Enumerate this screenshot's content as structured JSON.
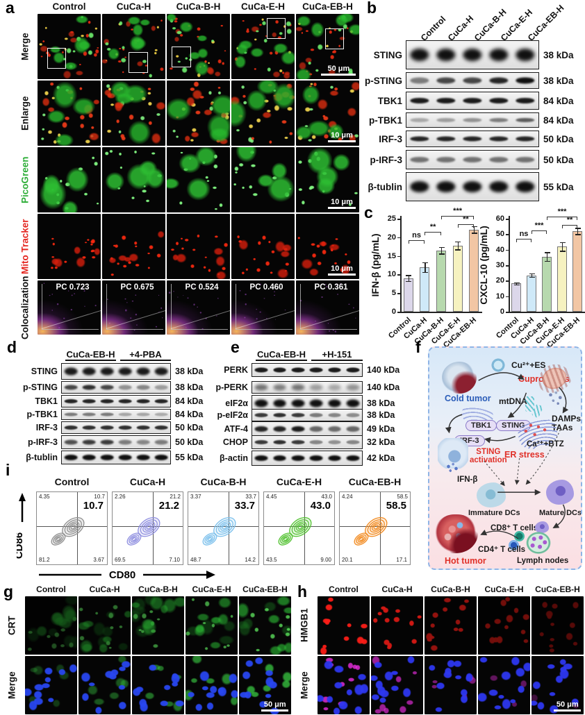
{
  "panels": {
    "a": {
      "label": "a",
      "columns": [
        "Control",
        "CuCa-H",
        "CuCa-B-H",
        "CuCa-E-H",
        "CuCa-EB-H"
      ],
      "rows": [
        {
          "text": "Merge",
          "color": "#111111"
        },
        {
          "text": "Enlarge",
          "color": "#111111"
        },
        {
          "text": "PicoGreen",
          "color": "#2fae39"
        },
        {
          "text": "Mito Tracker",
          "color": "#e42620"
        },
        {
          "text": "Colocalization",
          "color": "#111111"
        }
      ],
      "pc_values": [
        "PC 0.723",
        "PC 0.675",
        "PC 0.524",
        "PC 0.460",
        "PC 0.361"
      ],
      "scalebar_merge": "50 μm",
      "scalebar_small": "10 μm"
    },
    "b": {
      "label": "b",
      "columns": [
        "Control",
        "CuCa-H",
        "CuCa-B-H",
        "CuCa-E-H",
        "CuCa-EB-H"
      ],
      "rows": [
        {
          "protein": "STING",
          "kda": "38 kDa"
        },
        {
          "protein": "p-STING",
          "kda": "38 kDa"
        },
        {
          "protein": "TBK1",
          "kda": "84 kDa"
        },
        {
          "protein": "p-TBK1",
          "kda": "84 kDa"
        },
        {
          "protein": "IRF-3",
          "kda": "50 kDa"
        },
        {
          "protein": "p-IRF-3",
          "kda": "50 kDa"
        },
        {
          "protein": "β-tublin",
          "kda": "55 kDa"
        }
      ]
    },
    "c": {
      "label": "c"
    },
    "d": {
      "label": "d",
      "groups": [
        "CuCa-EB-H",
        "+4-PBA"
      ],
      "rows": [
        {
          "protein": "STING",
          "kda": "38 kDa"
        },
        {
          "protein": "p-STING",
          "kda": "38 kDa"
        },
        {
          "protein": "TBK1",
          "kda": "84 kDa"
        },
        {
          "protein": "p-TBK1",
          "kda": "84 kDa"
        },
        {
          "protein": "IRF-3",
          "kda": "50 kDa"
        },
        {
          "protein": "p-IRF-3",
          "kda": "50 kDa"
        },
        {
          "protein": "β-tublin",
          "kda": "55 kDa"
        }
      ]
    },
    "e": {
      "label": "e",
      "groups": [
        "CuCa-EB-H",
        "+H-151"
      ],
      "rows": [
        {
          "protein": "PERK",
          "kda": "140 kDa"
        },
        {
          "protein": "p-PERK",
          "kda": "140 kDa"
        },
        {
          "protein": "eIF2α",
          "kda": "38 kDa"
        },
        {
          "protein": "p-eIF2α",
          "kda": "38 kDa"
        },
        {
          "protein": "ATF-4",
          "kda": "49 kDa"
        },
        {
          "protein": "CHOP",
          "kda": "32 kDa"
        },
        {
          "protein": "β-actin",
          "kda": "42 kDa"
        }
      ]
    },
    "f": {
      "label": "f",
      "cold_tumor": "Cold tumor",
      "cu_es": "Cu²⁺+ES",
      "cuproptosis": "Cuproptosis",
      "mtdna": "mtDNA",
      "damps_line1": "DAMPs",
      "damps_line2": "TAAs",
      "tbk1": "TBK1",
      "sting": "STING",
      "irf3": "IRF-3",
      "sting_act_1": "STING",
      "sting_act_2": "activation",
      "er_stress": "ER stress",
      "ca_btz": "Ca²⁺+BTZ",
      "ifn_b": "IFN-β",
      "immature": "Immature DCs",
      "mature": "Mature DCs",
      "cd8": "CD8⁺ T cells",
      "cd4": "CD4⁺ T cells",
      "hot_tumor": "Hot tumor",
      "lymph": "Lymph nodes"
    },
    "i": {
      "label": "i",
      "x_axis": "CD80",
      "y_axis": "CD86",
      "plots": [
        {
          "title": "Control",
          "tl": "4.35",
          "tr": "10.7",
          "big": "10.7",
          "bl": "81.2",
          "br": "3.67",
          "color": "#8f8f8f"
        },
        {
          "title": "CuCa-H",
          "tl": "2.26",
          "tr": "21.2",
          "big": "21.2",
          "bl": "69.5",
          "br": "7.10",
          "color": "#8f8fe0"
        },
        {
          "title": "CuCa-B-H",
          "tl": "3.37",
          "tr": "33.7",
          "big": "33.7",
          "bl": "48.7",
          "br": "14.2",
          "color": "#7cc0ec"
        },
        {
          "title": "CuCa-E-H",
          "tl": "4.45",
          "tr": "43.0",
          "big": "43.0",
          "bl": "43.5",
          "br": "9.00",
          "color": "#53c232"
        },
        {
          "title": "CuCa-EB-H",
          "tl": "4.24",
          "tr": "58.5",
          "big": "58.5",
          "bl": "20.1",
          "br": "17.1",
          "color": "#f28a1f"
        }
      ]
    },
    "g": {
      "label": "g",
      "columns": [
        "Control",
        "CuCa-H",
        "CuCa-B-H",
        "CuCa-E-H",
        "CuCa-EB-H"
      ],
      "rows": [
        "CRT",
        "Merge"
      ],
      "scalebar": "50 μm"
    },
    "h": {
      "label": "h",
      "columns": [
        "Control",
        "CuCa-H",
        "CuCa-B-H",
        "CuCa-E-H",
        "CuCa-EB-H"
      ],
      "rows": [
        "HMGB1",
        "Merge"
      ],
      "scalebar": "50 μm"
    }
  },
  "chart_data": [
    {
      "type": "bar",
      "title": "",
      "ylabel": "IFN-β (pg/mL)",
      "categories": [
        "Control",
        "CuCa-H",
        "CuCa-B-H",
        "CuCa-E-H",
        "CuCa-EB-H"
      ],
      "values": [
        9.0,
        11.9,
        16.5,
        17.8,
        22.1
      ],
      "errors": [
        0.8,
        1.3,
        0.9,
        1.1,
        0.9
      ],
      "ylim": [
        0,
        25
      ],
      "yticks": [
        0,
        5,
        10,
        15,
        20,
        25
      ],
      "bar_colors": [
        "#dcd7ea",
        "#cfe9f8",
        "#b7d9ae",
        "#f6f2c0",
        "#f2c6a4"
      ],
      "grid": false,
      "significance": [
        {
          "a": 0,
          "b": 1,
          "y": 19.3,
          "label": "ns"
        },
        {
          "a": 1,
          "b": 2,
          "y": 21.4,
          "label": "**"
        },
        {
          "a": 3,
          "b": 4,
          "y": 23.6,
          "label": "**"
        },
        {
          "a": 2,
          "b": 4,
          "y": 25.8,
          "label": "***"
        }
      ]
    },
    {
      "type": "bar",
      "title": "",
      "ylabel": "CXCL-10 (pg/mL)",
      "categories": [
        "Control",
        "CuCa-H",
        "CuCa-B-H",
        "CuCa-E-H",
        "CuCa-EB-H"
      ],
      "values": [
        18.2,
        23.5,
        35.5,
        42.0,
        52.0
      ],
      "errors": [
        0.6,
        1.2,
        2.8,
        2.8,
        2.0
      ],
      "ylim": [
        0,
        60
      ],
      "yticks": [
        0,
        10,
        20,
        30,
        40,
        50,
        60
      ],
      "bar_colors": [
        "#dcd7ea",
        "#cfe9f8",
        "#b7d9ae",
        "#f6f2c0",
        "#f2c6a4"
      ],
      "grid": false,
      "significance": [
        {
          "a": 0,
          "b": 1,
          "y": 47.0,
          "label": "ns"
        },
        {
          "a": 1,
          "b": 2,
          "y": 52.5,
          "label": "***"
        },
        {
          "a": 3,
          "b": 4,
          "y": 56.0,
          "label": "**"
        },
        {
          "a": 2,
          "b": 4,
          "y": 61.5,
          "label": "***"
        }
      ]
    }
  ]
}
